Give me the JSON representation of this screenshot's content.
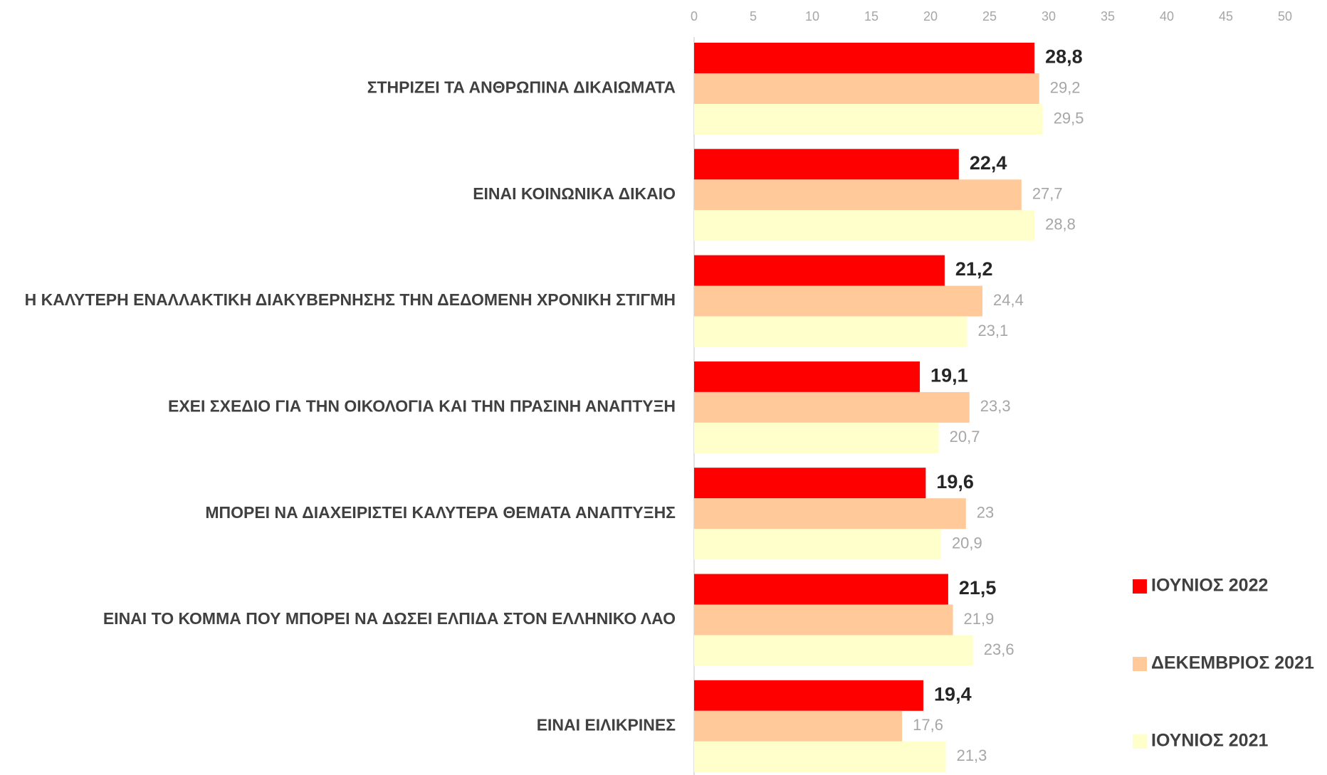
{
  "chart_data": {
    "type": "barh",
    "categories": [
      "ΣΤΗΡΙΖΕΙ ΤΑ ΑΝΘΡΩΠΙΝΑ ΔΙΚΑΙΩΜΑΤΑ",
      "ΕΙΝΑΙ ΚΟΙΝΩΝΙΚΑ ΔΙΚΑΙΟ",
      "Η ΚΑΛΥΤΕΡΗ ΕΝΑΛΛΑΚΤΙΚΗ ΔΙΑΚΥΒΕΡΝΗΣΗΣ ΤΗΝ ΔΕΔΟΜΕΝΗ ΧΡΟΝΙΚΗ ΣΤΙΓΜΗ",
      "ΕΧΕΙ ΣΧΕΔΙΟ ΓΙΑ ΤΗΝ ΟΙΚΟΛΟΓΙΑ ΚΑΙ ΤΗΝ ΠΡΑΣΙΝΗ ΑΝΑΠΤΥΞΗ",
      "ΜΠΟΡΕΙ ΝΑ ΔΙΑΧΕΙΡΙΣΤΕΙ ΚΑΛΥΤΕΡΑ ΘΕΜΑΤΑ ΑΝΑΠΤΥΞΗΣ",
      "ΕΙΝΑΙ ΤΟ ΚΟΜΜΑ ΠΟΥ ΜΠΟΡΕΙ ΝΑ ΔΩΣΕΙ ΕΛΠΙΔΑ ΣΤΟΝ ΕΛΛΗΝΙΚΟ ΛΑΟ",
      "ΕΙΝΑΙ ΕΙΛΙΚΡΙΝΕΣ"
    ],
    "series": [
      {
        "name": "ΙΟΥΝΙΟΣ 2022",
        "color": "#ff0000",
        "values": [
          28.8,
          22.4,
          21.2,
          19.1,
          19.6,
          21.5,
          19.4
        ],
        "value_labels": [
          "28,8",
          "22,4",
          "21,2",
          "19,1",
          "19,6",
          "21,5",
          "19,4"
        ]
      },
      {
        "name": "ΔΕΚΕΜΒΡΙΟΣ 2021",
        "color": "#ffc999",
        "values": [
          29.2,
          27.7,
          24.4,
          23.3,
          23,
          21.9,
          17.6
        ],
        "value_labels": [
          "29,2",
          "27,7",
          "24,4",
          "23,3",
          "23",
          "21,9",
          "17,6"
        ]
      },
      {
        "name": "ΙΟΥΝΙΟΣ 2021",
        "color": "#ffffcc",
        "values": [
          29.5,
          28.8,
          23.1,
          20.7,
          20.9,
          23.6,
          21.3
        ],
        "value_labels": [
          "29,5",
          "28,8",
          "23,1",
          "20,7",
          "20,9",
          "23,6",
          "21,3"
        ]
      }
    ],
    "xlim": [
      0,
      50
    ],
    "xticks": [
      0,
      5,
      10,
      15,
      20,
      25,
      30,
      35,
      40,
      45,
      50
    ],
    "legend": "right"
  }
}
